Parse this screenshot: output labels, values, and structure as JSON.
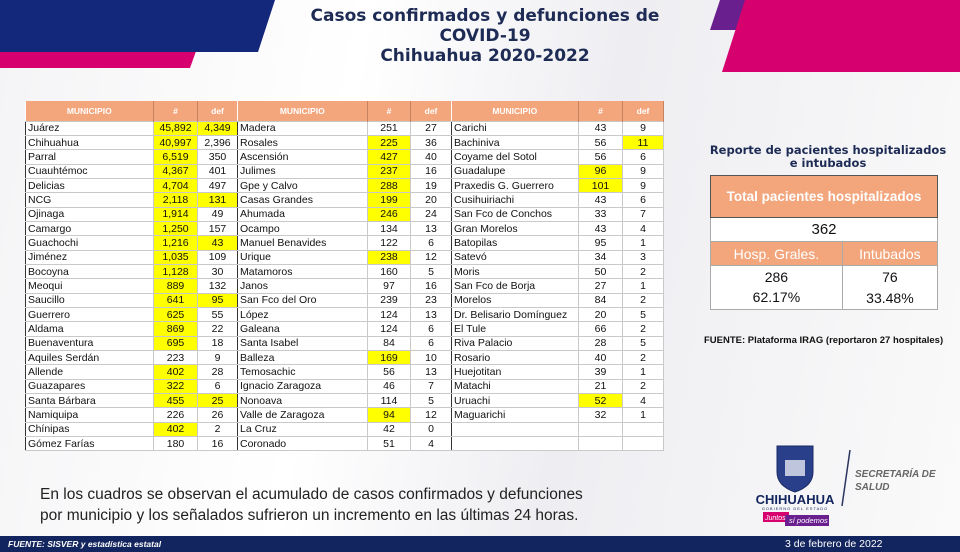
{
  "title": [
    "Casos confirmados y defunciones de",
    "COVID-19",
    "Chihuahua 2020-2022"
  ],
  "colors": {
    "header": "#f3a57c",
    "highlight": "#ffff00",
    "navy": "#13255e",
    "pink": "#d6006e",
    "purple": "#6a1f8f"
  },
  "table_headers": [
    "MUNICIPIO",
    "#",
    "def"
  ],
  "tables": [
    [
      [
        "Juárez",
        "45,892",
        "4,349",
        1,
        1
      ],
      [
        "Chihuahua",
        "40,997",
        "2,396",
        1,
        0
      ],
      [
        "Parral",
        "6,519",
        "350",
        1,
        0
      ],
      [
        "Cuauhtémoc",
        "4,367",
        "401",
        1,
        0
      ],
      [
        "Delicias",
        "4,704",
        "497",
        1,
        0
      ],
      [
        "NCG",
        "2,118",
        "131",
        1,
        1
      ],
      [
        "Ojinaga",
        "1,914",
        "49",
        1,
        0
      ],
      [
        "Camargo",
        "1,250",
        "157",
        1,
        0
      ],
      [
        "Guachochi",
        "1,216",
        "43",
        1,
        1
      ],
      [
        "Jiménez",
        "1,035",
        "109",
        1,
        0
      ],
      [
        "Bocoyna",
        "1,128",
        "30",
        1,
        0
      ],
      [
        "Meoqui",
        "889",
        "132",
        1,
        0
      ],
      [
        "Saucillo",
        "641",
        "95",
        1,
        1
      ],
      [
        "Guerrero",
        "625",
        "55",
        1,
        0
      ],
      [
        "Aldama",
        "869",
        "22",
        1,
        0
      ],
      [
        "Buenaventura",
        "695",
        "18",
        1,
        0
      ],
      [
        "Aquiles Serdán",
        "223",
        "9",
        0,
        0
      ],
      [
        "Allende",
        "402",
        "28",
        1,
        0
      ],
      [
        "Guazapares",
        "322",
        "6",
        1,
        0
      ],
      [
        "Santa Bárbara",
        "455",
        "25",
        1,
        1
      ],
      [
        "Namiquipa",
        "226",
        "26",
        0,
        0
      ],
      [
        "Chínipas",
        "402",
        "2",
        1,
        0
      ],
      [
        "Gómez Farías",
        "180",
        "16",
        0,
        0
      ]
    ],
    [
      [
        "Madera",
        "251",
        "27",
        0,
        0
      ],
      [
        "Rosales",
        "225",
        "36",
        1,
        0
      ],
      [
        "Ascensión",
        "427",
        "40",
        1,
        0
      ],
      [
        "Julimes",
        "237",
        "16",
        1,
        0
      ],
      [
        "Gpe y Calvo",
        "288",
        "19",
        1,
        0
      ],
      [
        "Casas Grandes",
        "199",
        "20",
        1,
        0
      ],
      [
        "Ahumada",
        "246",
        "24",
        1,
        0
      ],
      [
        "Ocampo",
        "134",
        "13",
        0,
        0
      ],
      [
        "Manuel Benavides",
        "122",
        "6",
        0,
        0
      ],
      [
        "Urique",
        "238",
        "12",
        1,
        0
      ],
      [
        "Matamoros",
        "160",
        "5",
        0,
        0
      ],
      [
        "Janos",
        "97",
        "16",
        0,
        0
      ],
      [
        "San Fco del Oro",
        "239",
        "23",
        0,
        0
      ],
      [
        "López",
        "124",
        "13",
        0,
        0
      ],
      [
        "Galeana",
        "124",
        "6",
        0,
        0
      ],
      [
        "Santa Isabel",
        "84",
        "6",
        0,
        0
      ],
      [
        "Balleza",
        "169",
        "10",
        1,
        0
      ],
      [
        "Temosachic",
        "56",
        "13",
        0,
        0
      ],
      [
        "Ignacio Zaragoza",
        "46",
        "7",
        0,
        0
      ],
      [
        "Nonoava",
        "114",
        "5",
        0,
        0
      ],
      [
        "Valle de Zaragoza",
        "94",
        "12",
        1,
        0
      ],
      [
        "La Cruz",
        "42",
        "0",
        0,
        0
      ],
      [
        "Coronado",
        "51",
        "4",
        0,
        0
      ]
    ],
    [
      [
        "Carichi",
        "43",
        "9",
        0,
        0
      ],
      [
        "Bachiniva",
        "56",
        "11",
        0,
        1
      ],
      [
        "Coyame del Sotol",
        "56",
        "6",
        0,
        0
      ],
      [
        "Guadalupe",
        "96",
        "9",
        1,
        0
      ],
      [
        "Praxedis G. Guerrero",
        "101",
        "9",
        1,
        0
      ],
      [
        "Cusihuiriachi",
        "43",
        "6",
        0,
        0
      ],
      [
        "San Fco de Conchos",
        "33",
        "7",
        0,
        0
      ],
      [
        "Gran Morelos",
        "43",
        "4",
        0,
        0
      ],
      [
        "Batopilas",
        "95",
        "1",
        0,
        0
      ],
      [
        "Satevó",
        "34",
        "3",
        0,
        0
      ],
      [
        "Moris",
        "50",
        "2",
        0,
        0
      ],
      [
        "San Fco de Borja",
        "27",
        "1",
        0,
        0
      ],
      [
        "Morelos",
        "84",
        "2",
        0,
        0
      ],
      [
        "Dr. Belisario Domínguez",
        "20",
        "5",
        0,
        0
      ],
      [
        "El Tule",
        "66",
        "2",
        0,
        0
      ],
      [
        "Riva Palacio",
        "28",
        "5",
        0,
        0
      ],
      [
        "Rosario",
        "40",
        "2",
        0,
        0
      ],
      [
        "Huejotitan",
        "39",
        "1",
        0,
        0
      ],
      [
        "Matachi",
        "21",
        "2",
        0,
        0
      ],
      [
        "Uruachi",
        "52",
        "4",
        1,
        0
      ],
      [
        "Maguarichi",
        "32",
        "1",
        0,
        0
      ],
      [
        "",
        "",
        "",
        0,
        0
      ],
      [
        "",
        "",
        "",
        0,
        0
      ]
    ]
  ],
  "hospital": {
    "title": [
      "Reporte de pacientes hospitalizados",
      "e intubados"
    ],
    "total_label": "Total pacientes hospitalizados",
    "total": "362",
    "cols": [
      "Hosp. Grales.",
      "Intubados"
    ],
    "counts": [
      "286",
      "76"
    ],
    "percents": [
      "62.17%",
      "33.48%"
    ],
    "source": "FUENTE: Plataforma IRAG (reportaron 27 hospitales)"
  },
  "note": [
    "En los cuadros se observan el acumulado de casos confirmados y defunciones",
    "por municipio y los señalados sufrieron un incremento en las últimas 24 horas."
  ],
  "footer": {
    "source": "FUENTE: SISVER y estadística estatal",
    "date": "3 de febrero de 2022"
  },
  "logo": {
    "name": "CHIHUAHUA",
    "sub": "GOBIERNO DEL ESTADO",
    "slogan1": "Juntos",
    "slogan2": "sí podemos"
  },
  "secretaria": [
    "SECRETARÍA DE",
    "SALUD"
  ]
}
